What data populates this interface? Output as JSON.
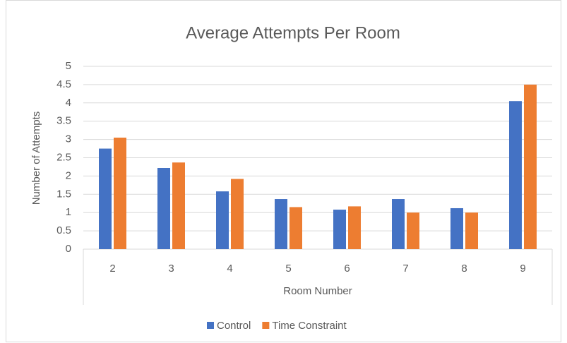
{
  "chart_data": {
    "type": "bar",
    "title": "Average Attempts Per Room",
    "x_label": "Room Number",
    "y_label": "Number of Attempts",
    "categories": [
      "2",
      "3",
      "4",
      "5",
      "6",
      "7",
      "8",
      "9"
    ],
    "series": [
      {
        "name": "Control",
        "color": "#4472c4",
        "values": [
          2.75,
          2.22,
          1.58,
          1.37,
          1.08,
          1.37,
          1.12,
          4.05
        ]
      },
      {
        "name": "Time Constraint",
        "color": "#ed7d31",
        "values": [
          3.05,
          2.37,
          1.92,
          1.15,
          1.17,
          1.0,
          1.0,
          4.5
        ]
      }
    ],
    "ylim": [
      0,
      5
    ],
    "yticks": [
      0,
      0.5,
      1,
      1.5,
      2,
      2.5,
      3,
      3.5,
      4,
      4.5,
      5
    ],
    "grid": true,
    "legend": "bottom"
  }
}
